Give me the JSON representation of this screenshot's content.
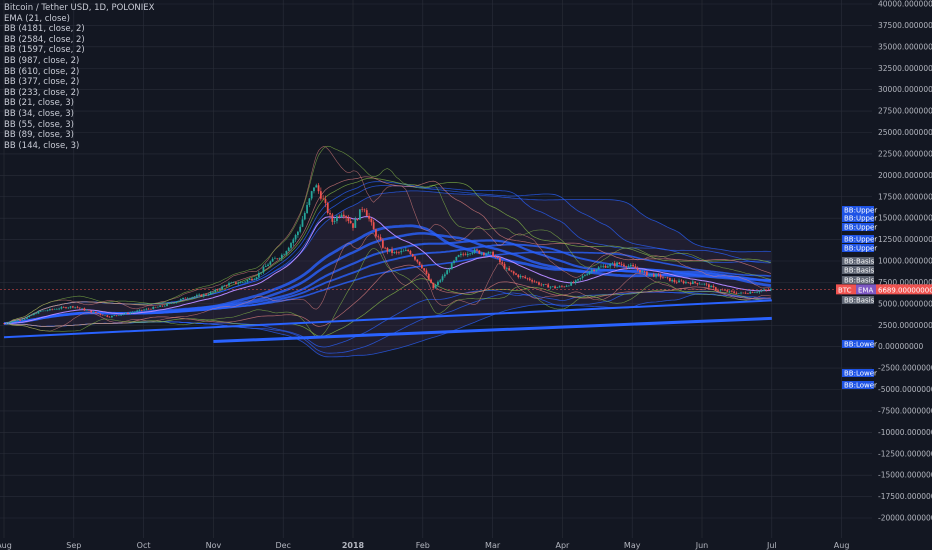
{
  "chart_data": {
    "type": "candlestick",
    "title": "Bitcoin / Tether USD, 1D, POLONIEX",
    "indicators": [
      "EMA (21, close)",
      "BB (4181, close, 2)",
      "BB (2584, close, 2)",
      "BB (1597, close, 2)",
      "BB (987, close, 2)",
      "BB (610, close, 2)",
      "BB (377, close, 2)",
      "BB (233, close, 2)",
      "BB (21, close, 3)",
      "BB (34, close, 3)",
      "BB (55, close, 3)",
      "BB (89, close, 3)",
      "BB (144, close, 3)"
    ],
    "ylim": [
      -22000,
      40000
    ],
    "y_ticks": [
      {
        "v": 40000,
        "label": "40000.00000000"
      },
      {
        "v": 37500,
        "label": "37500.00000000"
      },
      {
        "v": 35000,
        "label": "35000.00000000"
      },
      {
        "v": 32500,
        "label": "32500.00000000"
      },
      {
        "v": 30000,
        "label": "30000.00000000"
      },
      {
        "v": 27500,
        "label": "27500.00000000"
      },
      {
        "v": 25000,
        "label": "25000.00000000"
      },
      {
        "v": 22500,
        "label": "22500.00000000"
      },
      {
        "v": 20000,
        "label": "20000.00000000"
      },
      {
        "v": 17500,
        "label": "17500.00000000"
      },
      {
        "v": 15000,
        "label": "15000.00000000"
      },
      {
        "v": 12500,
        "label": "12500.00000000"
      },
      {
        "v": 10000,
        "label": "10000.00000000"
      },
      {
        "v": 7500,
        "label": "7500.00000000"
      },
      {
        "v": 5000,
        "label": "5000.00000000"
      },
      {
        "v": 2500,
        "label": "2500.00000000"
      },
      {
        "v": 0,
        "label": "0.00000000"
      },
      {
        "v": -2500,
        "label": "-2500.00000000"
      },
      {
        "v": -5000,
        "label": "-5000.00000000"
      },
      {
        "v": -7500,
        "label": "-7500.00000000"
      },
      {
        "v": -10000,
        "label": "-10000.00000000"
      },
      {
        "v": -12500,
        "label": "-12500.00000000"
      },
      {
        "v": -15000,
        "label": "-15000.00000000"
      },
      {
        "v": -17500,
        "label": "-17500.00000000"
      },
      {
        "v": -20000,
        "label": "-20000.00000000"
      }
    ],
    "x_ticks": [
      {
        "label": "Aug",
        "month": 0
      },
      {
        "label": "Sep",
        "month": 1
      },
      {
        "label": "Oct",
        "month": 2
      },
      {
        "label": "Nov",
        "month": 3
      },
      {
        "label": "Dec",
        "month": 4
      },
      {
        "label": "2018",
        "month": 5
      },
      {
        "label": "Feb",
        "month": 6
      },
      {
        "label": "Mar",
        "month": 7
      },
      {
        "label": "Apr",
        "month": 8
      },
      {
        "label": "May",
        "month": 9
      },
      {
        "label": "Jun",
        "month": 10
      },
      {
        "label": "Jul",
        "month": 11
      },
      {
        "label": "Aug",
        "month": 12
      }
    ],
    "x_unit": "months since Aug 2017",
    "price_path": [
      [
        0.0,
        2700
      ],
      [
        0.3,
        3300
      ],
      [
        0.5,
        4100
      ],
      [
        0.8,
        4500
      ],
      [
        1.0,
        4700
      ],
      [
        1.2,
        4200
      ],
      [
        1.5,
        3500
      ],
      [
        1.7,
        3800
      ],
      [
        2.0,
        4300
      ],
      [
        2.3,
        4800
      ],
      [
        2.6,
        5700
      ],
      [
        2.9,
        6100
      ],
      [
        3.0,
        6400
      ],
      [
        3.2,
        7300
      ],
      [
        3.4,
        7500
      ],
      [
        3.6,
        8100
      ],
      [
        3.8,
        9800
      ],
      [
        4.0,
        10800
      ],
      [
        4.2,
        13200
      ],
      [
        4.35,
        16500
      ],
      [
        4.45,
        19000
      ],
      [
        4.55,
        17500
      ],
      [
        4.7,
        14600
      ],
      [
        4.85,
        15800
      ],
      [
        5.0,
        14100
      ],
      [
        5.15,
        16500
      ],
      [
        5.3,
        13500
      ],
      [
        5.45,
        11400
      ],
      [
        5.6,
        10900
      ],
      [
        5.8,
        11200
      ],
      [
        6.0,
        9200
      ],
      [
        6.15,
        6800
      ],
      [
        6.3,
        8300
      ],
      [
        6.5,
        10500
      ],
      [
        6.7,
        11200
      ],
      [
        7.0,
        10800
      ],
      [
        7.2,
        9000
      ],
      [
        7.35,
        8300
      ],
      [
        7.55,
        7800
      ],
      [
        7.7,
        7200
      ],
      [
        7.9,
        6900
      ],
      [
        8.0,
        7000
      ],
      [
        8.2,
        7600
      ],
      [
        8.4,
        8900
      ],
      [
        8.6,
        9400
      ],
      [
        8.8,
        9700
      ],
      [
        9.0,
        9300
      ],
      [
        9.2,
        8500
      ],
      [
        9.4,
        8200
      ],
      [
        9.6,
        7600
      ],
      [
        9.8,
        7500
      ],
      [
        10.0,
        7400
      ],
      [
        10.2,
        6700
      ],
      [
        10.4,
        6400
      ],
      [
        10.55,
        6200
      ],
      [
        10.7,
        6400
      ],
      [
        10.85,
        6500
      ],
      [
        11.0,
        6700
      ]
    ],
    "current_price_label": "6689.00000000",
    "series_badges": [
      "BB:Upper",
      "BB:Upper",
      "BB:Upper",
      "BB:Upper",
      "BB:Upper",
      "BB:Basis",
      "BB:Basis",
      "BB:Basis",
      "BB:Basis",
      "BB:Lower",
      "BB:Lower",
      "BB:Lower"
    ],
    "btc_badge": "BTC",
    "ema_badge": "EMA",
    "grid": true,
    "colors": {
      "background": "#131722",
      "grid": "#2a2e39",
      "up": "#26a69a",
      "down": "#ef5350",
      "bb_blue": "#2962ff",
      "bb_green": "#8bc34a",
      "bb_pink": "#e08080",
      "band_fill": "#3a2a4a",
      "current_price": "#ef5350"
    }
  }
}
